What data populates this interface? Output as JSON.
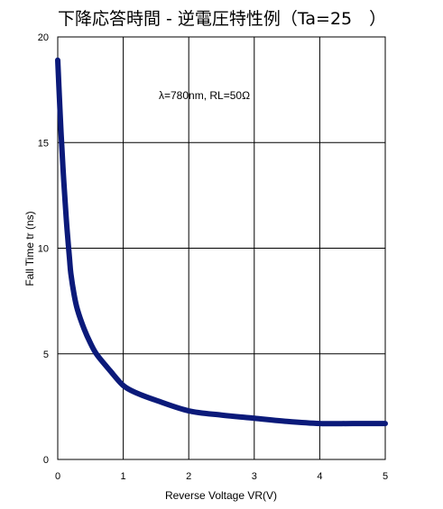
{
  "chart_data": {
    "type": "line",
    "title": "下降応答時間 - 逆電圧特性例（Ta=25　）",
    "annotation": "λ=780nm, RL=50Ω",
    "xlabel": "Reverse Voltage  VR(V)",
    "ylabel": "Fall Time  tr (ns)",
    "xlim": [
      0,
      5
    ],
    "ylim": [
      0,
      20
    ],
    "x_ticks": [
      "0",
      "1",
      "2",
      "3",
      "4",
      "5"
    ],
    "y_ticks": [
      "0",
      "5",
      "10",
      "15",
      "20"
    ],
    "grid": true,
    "series_color": "#0b1a7a",
    "series": [
      {
        "x": [
          0,
          0.02,
          0.05,
          0.08,
          0.1,
          0.13,
          0.15,
          0.18,
          0.2,
          0.25,
          0.3,
          0.4,
          0.5,
          0.6,
          0.8,
          1.0,
          1.2,
          1.5,
          2.0,
          2.5,
          3.0,
          3.5,
          4.0,
          4.5,
          5.0
        ],
        "y": [
          18.9,
          17.5,
          15.5,
          13.8,
          12.8,
          11.4,
          10.6,
          9.5,
          8.8,
          7.8,
          7.1,
          6.2,
          5.5,
          4.95,
          4.2,
          3.5,
          3.15,
          2.8,
          2.3,
          2.1,
          1.95,
          1.8,
          1.7,
          1.7,
          1.7
        ]
      }
    ]
  }
}
